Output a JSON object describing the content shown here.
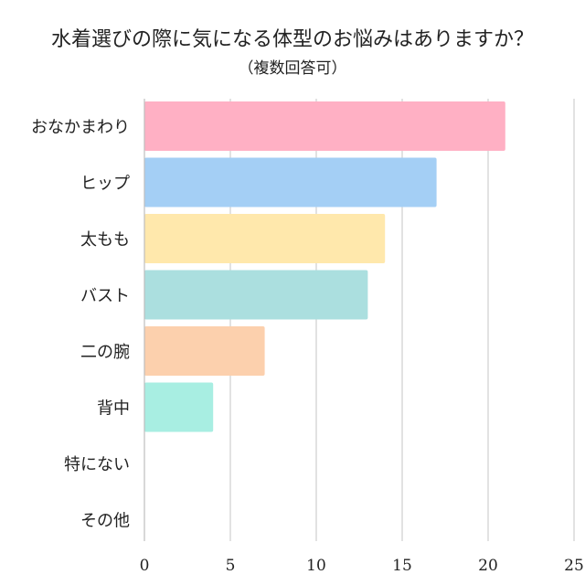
{
  "chart_data": {
    "type": "bar",
    "orientation": "horizontal",
    "title": "水着選びの際に気になる体型のお悩みはありますか？",
    "subtitle": "（複数回答可）",
    "categories": [
      "おなかまわり",
      "ヒップ",
      "太もも",
      "バスト",
      "二の腕",
      "背中",
      "特にない",
      "その他"
    ],
    "values": [
      21,
      17,
      14,
      13,
      7,
      4,
      0,
      0
    ],
    "colors": [
      "#ffb0c4",
      "#a4cff5",
      "#ffe8ac",
      "#abdfdf",
      "#fcd0ad",
      "#a8eee2",
      "#cccccc",
      "#cccccc"
    ],
    "xlim": [
      0,
      25
    ],
    "xticks": [
      "0",
      "5",
      "10",
      "15",
      "20",
      "25"
    ],
    "grid": true,
    "legend": "none"
  }
}
